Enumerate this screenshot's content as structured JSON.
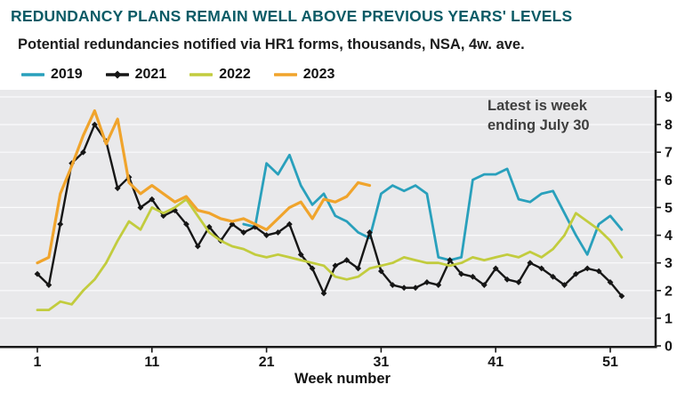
{
  "title": "REDUNDANCY PLANS REMAIN WELL ABOVE PREVIOUS YEARS' LEVELS",
  "subtitle": "Potential redundancies notified via HR1 forms, thousands, NSA, 4w. ave.",
  "annotation": {
    "line1": "Latest is week",
    "line2": "ending July 30"
  },
  "colors": {
    "title": "#0a5b66",
    "background": "#ffffff",
    "plot_background": "#e9e9eb",
    "gridline": "#ffffff",
    "axis": "#1a1a1a",
    "annotation": "#3e3e3e"
  },
  "chart_data": {
    "type": "line",
    "xlabel": "Week number",
    "ylabel": "",
    "x_ticks": [
      1,
      11,
      21,
      31,
      41,
      51
    ],
    "y_ticks": [
      0,
      1,
      2,
      3,
      4,
      5,
      6,
      7,
      8,
      9
    ],
    "xlim": [
      1,
      52.5
    ],
    "ylim": [
      0,
      9
    ],
    "y_axis_side": "right",
    "legend_position": "top-left",
    "grid": true,
    "series": [
      {
        "name": "2019",
        "color": "#29a0bc",
        "marker": "none",
        "start_week": 19,
        "values": [
          4.4,
          4.3,
          6.6,
          6.2,
          6.9,
          5.8,
          5.1,
          5.5,
          4.7,
          4.5,
          4.1,
          3.9,
          5.5,
          5.8,
          5.6,
          5.8,
          5.5,
          3.2,
          3.1,
          3.2,
          6.0,
          6.2,
          6.2,
          6.4,
          5.3,
          5.2,
          5.5,
          5.6,
          4.8,
          4.0,
          3.3,
          4.4,
          4.7,
          4.2
        ]
      },
      {
        "name": "2021",
        "color": "#161616",
        "marker": "diamond",
        "start_week": 1,
        "values": [
          2.6,
          2.2,
          4.4,
          6.6,
          7.0,
          8.0,
          7.4,
          5.7,
          6.1,
          5.0,
          5.3,
          4.7,
          4.9,
          4.4,
          3.6,
          4.3,
          3.8,
          4.4,
          4.1,
          4.3,
          4.0,
          4.1,
          4.4,
          3.3,
          2.8,
          1.9,
          2.9,
          3.1,
          2.8,
          4.1,
          2.7,
          2.2,
          2.1,
          2.1,
          2.3,
          2.2,
          3.1,
          2.6,
          2.5,
          2.2,
          2.8,
          2.4,
          2.3,
          3.0,
          2.8,
          2.5,
          2.2,
          2.6,
          2.8,
          2.7,
          2.3,
          1.8
        ]
      },
      {
        "name": "2022",
        "color": "#c2cc3e",
        "marker": "none",
        "start_week": 1,
        "values": [
          1.3,
          1.3,
          1.6,
          1.5,
          2.0,
          2.4,
          3.0,
          3.8,
          4.5,
          4.2,
          5.0,
          4.8,
          5.0,
          5.3,
          4.7,
          4.1,
          3.8,
          3.6,
          3.5,
          3.3,
          3.2,
          3.3,
          3.2,
          3.1,
          3.0,
          2.9,
          2.5,
          2.4,
          2.5,
          2.8,
          2.9,
          3.0,
          3.2,
          3.1,
          3.0,
          3.0,
          2.9,
          3.0,
          3.2,
          3.1,
          3.2,
          3.3,
          3.2,
          3.4,
          3.2,
          3.5,
          4.0,
          4.8,
          4.5,
          4.2,
          3.8,
          3.2
        ]
      },
      {
        "name": "2023",
        "color": "#f0a42c",
        "marker": "none",
        "start_week": 1,
        "values": [
          3.0,
          3.2,
          5.5,
          6.5,
          7.6,
          8.5,
          7.3,
          8.2,
          5.9,
          5.5,
          5.8,
          5.5,
          5.2,
          5.4,
          4.9,
          4.8,
          4.6,
          4.5,
          4.6,
          4.4,
          4.2,
          4.6,
          5.0,
          5.2,
          4.6,
          5.3,
          5.2,
          5.4,
          5.9,
          5.8
        ]
      }
    ]
  }
}
